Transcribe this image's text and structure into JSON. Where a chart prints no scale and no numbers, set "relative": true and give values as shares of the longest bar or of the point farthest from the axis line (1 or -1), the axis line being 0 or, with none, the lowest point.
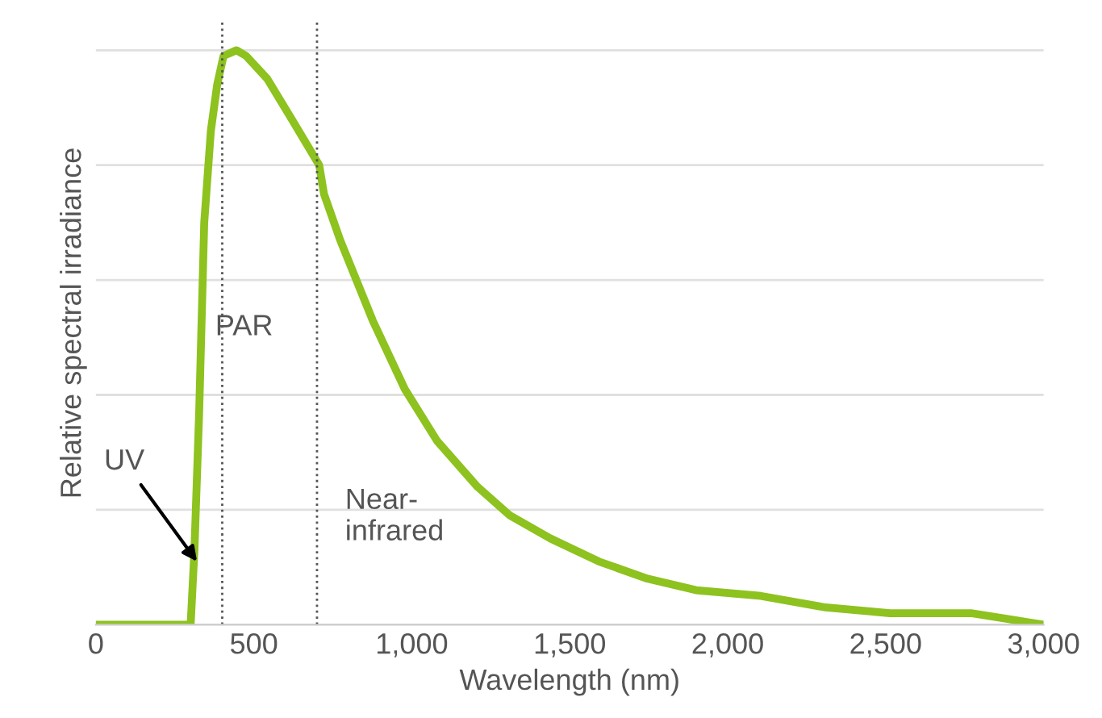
{
  "chart_data": {
    "type": "line",
    "relative": true,
    "xlabel": "Wavelength (nm)",
    "ylabel": "Relative spectral irradiance",
    "xlim": [
      0,
      3000
    ],
    "xticks": [
      0,
      {
        "value": 500,
        "label": "500"
      },
      {
        "value": 1000,
        "label": "1,000"
      },
      {
        "value": 1500,
        "label": "1,500"
      },
      {
        "value": 2000,
        "label": "2,000"
      },
      {
        "value": 2500,
        "label": "2,500"
      },
      {
        "value": 3000,
        "label": "3,000"
      }
    ],
    "grid": "y",
    "line_style": "solid",
    "series": [
      {
        "color": "#8dc21f",
        "x": [
          0,
          300,
          312,
          327,
          343,
          364,
          384,
          404,
          445,
          476,
          543,
          620,
          696,
          707,
          722,
          773,
          876,
          978,
          1080,
          1208,
          1311,
          1439,
          1592,
          1746,
          1900,
          2105,
          2310,
          2514,
          2770,
          3000
        ],
        "values": [
          0,
          0,
          0.13,
          0.37,
          0.7,
          0.86,
          0.94,
          0.99,
          1.0,
          0.99,
          0.95,
          0.88,
          0.81,
          0.8,
          0.75,
          0.67,
          0.53,
          0.41,
          0.32,
          0.24,
          0.19,
          0.15,
          0.11,
          0.08,
          0.06,
          0.05,
          0.03,
          0.02,
          0.02,
          0.0
        ]
      }
    ],
    "ref_lines": [
      {
        "axis": "x",
        "value": 400,
        "color": "#555555",
        "line_style": "dotted"
      },
      {
        "axis": "x",
        "value": 700,
        "color": "#555555",
        "line_style": "dotted"
      }
    ],
    "annotations": [
      {
        "text": "UV",
        "x": 320,
        "y": 0.11
      },
      "PAR",
      "Near-\ninfrared"
    ]
  }
}
